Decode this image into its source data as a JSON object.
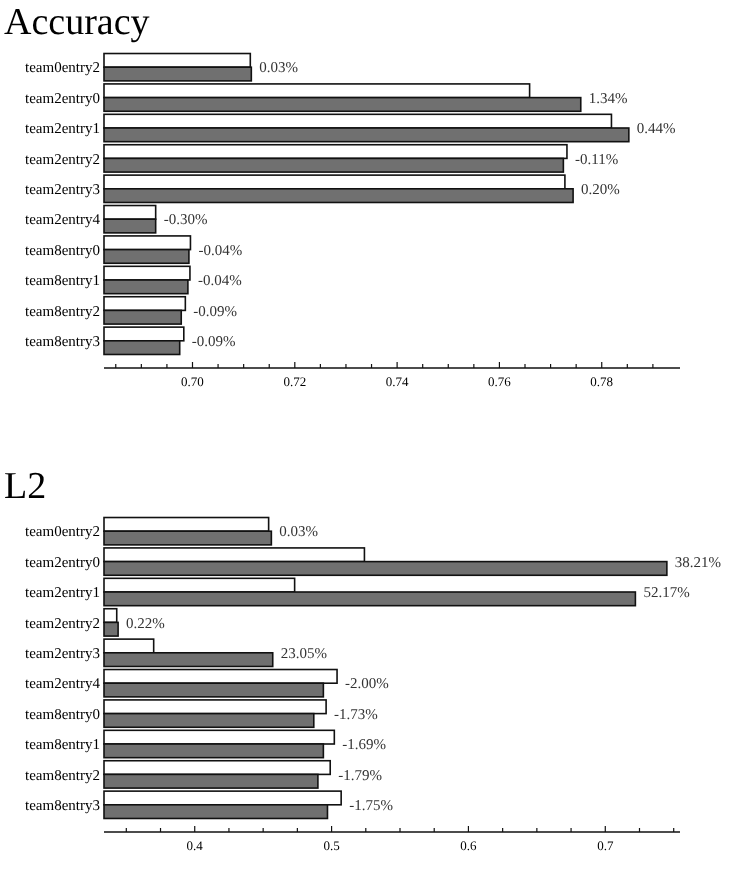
{
  "chart_data": [
    {
      "type": "bar",
      "title": "Accuracy",
      "orientation": "horizontal",
      "categories": [
        "team0entry2",
        "team2entry0",
        "team2entry1",
        "team2entry2",
        "team2entry3",
        "team2entry4",
        "team8entry0",
        "team8entry1",
        "team8entry2",
        "team8entry3"
      ],
      "xlim": [
        0.6827,
        0.7953
      ],
      "xticks": [
        {
          "value": 0.685,
          "label": null
        },
        {
          "value": 0.69,
          "label": null
        },
        {
          "value": 0.695,
          "label": null
        },
        {
          "value": 0.7,
          "label": "0.70"
        },
        {
          "value": 0.705,
          "label": null
        },
        {
          "value": 0.71,
          "label": null
        },
        {
          "value": 0.715,
          "label": null
        },
        {
          "value": 0.72,
          "label": "0.72"
        },
        {
          "value": 0.725,
          "label": null
        },
        {
          "value": 0.73,
          "label": null
        },
        {
          "value": 0.735,
          "label": null
        },
        {
          "value": 0.74,
          "label": "0.74"
        },
        {
          "value": 0.745,
          "label": null
        },
        {
          "value": 0.75,
          "label": null
        },
        {
          "value": 0.755,
          "label": null
        },
        {
          "value": 0.76,
          "label": "0.76"
        },
        {
          "value": 0.765,
          "label": null
        },
        {
          "value": 0.77,
          "label": null
        },
        {
          "value": 0.775,
          "label": null
        },
        {
          "value": 0.78,
          "label": "0.78"
        },
        {
          "value": 0.785,
          "label": null
        },
        {
          "value": 0.79,
          "label": null
        }
      ],
      "grid": false,
      "series": [
        {
          "color": "#ffffff",
          "values": [
            0.7113,
            0.7659,
            0.7819,
            0.7732,
            0.7728,
            0.6928,
            0.6996,
            0.6995,
            0.6986,
            0.6983
          ]
        },
        {
          "color": "#707070",
          "values": [
            0.7115,
            0.7759,
            0.7853,
            0.7725,
            0.7744,
            0.6928,
            0.6993,
            0.6991,
            0.6978,
            0.6975
          ]
        }
      ],
      "annotations": [
        {
          "text": "0.03%",
          "x": 0.7115,
          "y": "team0entry2"
        },
        {
          "text": "1.34%",
          "x": 0.7759,
          "y": "team2entry0"
        },
        {
          "text": "0.44%",
          "x": 0.7853,
          "y": "team2entry1"
        },
        {
          "text": "-0.11%",
          "x": 0.7732,
          "y": "team2entry2"
        },
        {
          "text": "0.20%",
          "x": 0.7744,
          "y": "team2entry3"
        },
        {
          "text": "-0.30%",
          "x": 0.6928,
          "y": "team2entry4"
        },
        {
          "text": "-0.04%",
          "x": 0.6996,
          "y": "team8entry0"
        },
        {
          "text": "-0.04%",
          "x": 0.6995,
          "y": "team8entry1"
        },
        {
          "text": "-0.09%",
          "x": 0.6986,
          "y": "team8entry2"
        },
        {
          "text": "-0.09%",
          "x": 0.6983,
          "y": "team8entry3"
        }
      ]
    },
    {
      "type": "bar",
      "title": "L2",
      "orientation": "horizontal",
      "categories": [
        "team0entry2",
        "team2entry0",
        "team2entry1",
        "team2entry2",
        "team2entry3",
        "team2entry4",
        "team8entry0",
        "team8entry1",
        "team8entry2",
        "team8entry3"
      ],
      "xlim": [
        0.3337,
        0.7546
      ],
      "xticks": [
        {
          "value": 0.35,
          "label": null
        },
        {
          "value": 0.375,
          "label": null
        },
        {
          "value": 0.4,
          "label": "0.4"
        },
        {
          "value": 0.425,
          "label": null
        },
        {
          "value": 0.45,
          "label": null
        },
        {
          "value": 0.475,
          "label": null
        },
        {
          "value": 0.5,
          "label": "0.5"
        },
        {
          "value": 0.525,
          "label": null
        },
        {
          "value": 0.55,
          "label": null
        },
        {
          "value": 0.575,
          "label": null
        },
        {
          "value": 0.6,
          "label": "0.6"
        },
        {
          "value": 0.625,
          "label": null
        },
        {
          "value": 0.65,
          "label": null
        },
        {
          "value": 0.675,
          "label": null
        },
        {
          "value": 0.7,
          "label": "0.7"
        },
        {
          "value": 0.725,
          "label": null
        },
        {
          "value": 0.75,
          "label": null
        }
      ],
      "grid": false,
      "series": [
        {
          "color": "#ffffff",
          "values": [
            0.454,
            0.524,
            0.473,
            0.343,
            0.37,
            0.504,
            0.496,
            0.502,
            0.499,
            0.507
          ]
        },
        {
          "color": "#707070",
          "values": [
            0.456,
            0.745,
            0.722,
            0.344,
            0.457,
            0.494,
            0.487,
            0.494,
            0.49,
            0.497
          ]
        }
      ],
      "annotations": [
        {
          "text": "0.03%",
          "x": 0.456,
          "y": "team0entry2"
        },
        {
          "text": "38.21%",
          "x": 0.745,
          "y": "team2entry0"
        },
        {
          "text": "52.17%",
          "x": 0.722,
          "y": "team2entry1"
        },
        {
          "text": "0.22%",
          "x": 0.344,
          "y": "team2entry2"
        },
        {
          "text": "23.05%",
          "x": 0.457,
          "y": "team2entry3"
        },
        {
          "text": "-2.00%",
          "x": 0.504,
          "y": "team2entry4"
        },
        {
          "text": "-1.73%",
          "x": 0.496,
          "y": "team8entry0"
        },
        {
          "text": "-1.69%",
          "x": 0.502,
          "y": "team8entry1"
        },
        {
          "text": "-1.79%",
          "x": 0.499,
          "y": "team8entry2"
        },
        {
          "text": "-1.75%",
          "x": 0.507,
          "y": "team8entry3"
        }
      ]
    }
  ]
}
